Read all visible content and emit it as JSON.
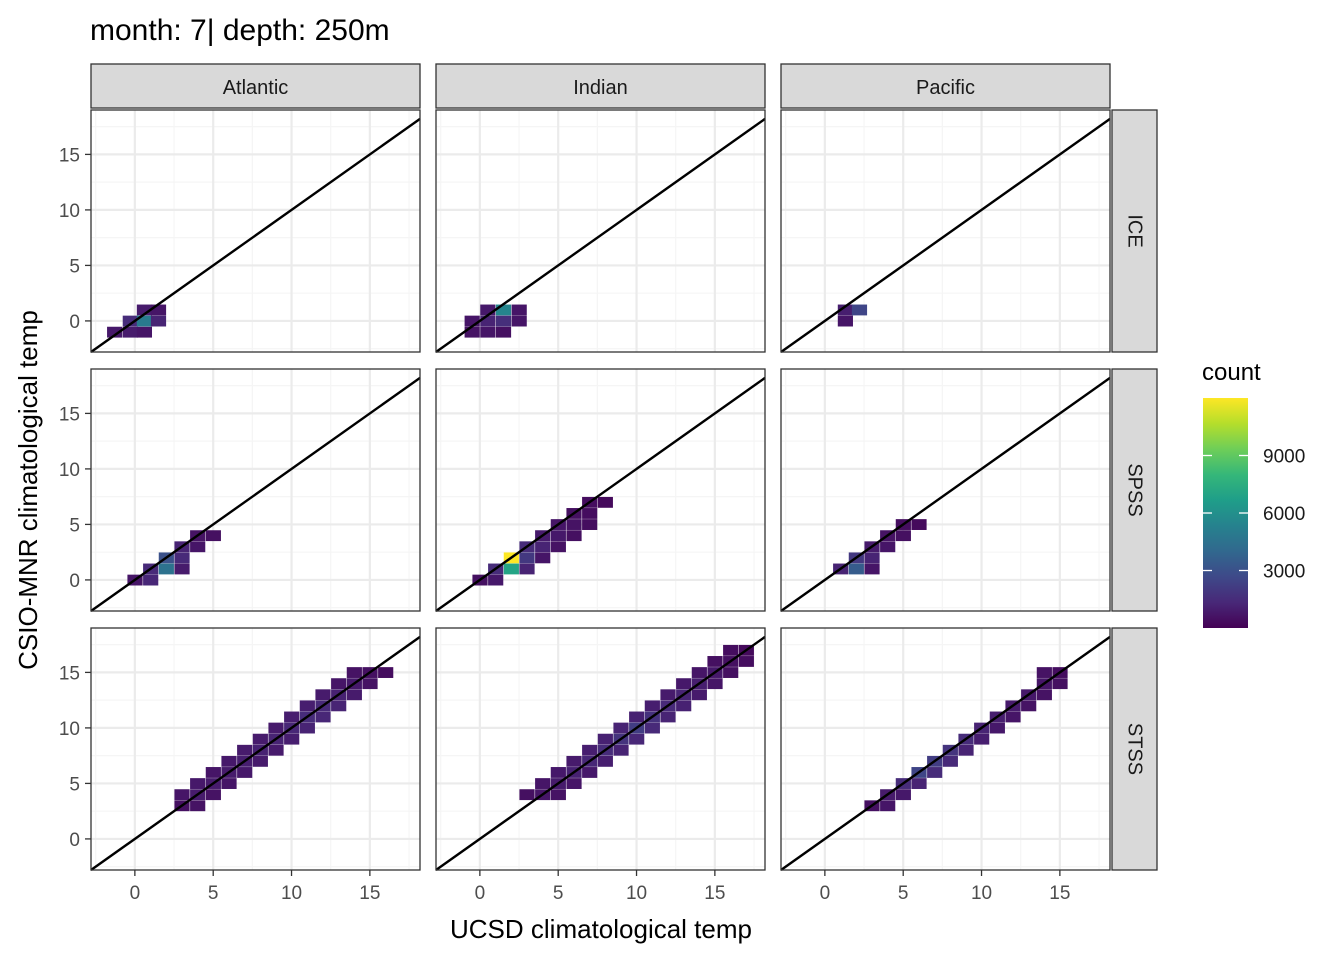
{
  "title": "month: 7| depth: 250m",
  "xlabel": "UCSD climatological temp",
  "ylabel": "CSIO-MNR climatological temp",
  "legend": {
    "title": "count",
    "ticks": [
      "3000",
      "6000",
      "9000"
    ],
    "tick_values": [
      3000,
      6000,
      9000
    ],
    "range": [
      1,
      12000
    ],
    "placement": "right",
    "colors": [
      "#440154",
      "#482878",
      "#3e4989",
      "#31688e",
      "#26828e",
      "#1f9e89",
      "#35b779",
      "#6ece58",
      "#b5de2b",
      "#fde725"
    ]
  },
  "colors": {
    "panel_border": "#333333",
    "strip_fill": "#d9d9d9",
    "grid_major": "#ebebeb",
    "grid_minor": "#f5f5f5",
    "identity_line": "#000000"
  },
  "chart_data": {
    "type": "heatmap",
    "geom": "2D histogram (bin2d) with identity line y = x",
    "facet_cols": [
      "Atlantic",
      "Indian",
      "Pacific"
    ],
    "facet_rows": [
      "ICE",
      "SPSS",
      "STSS"
    ],
    "x_ticks": [
      "0",
      "5",
      "10",
      "15"
    ],
    "y_ticks": [
      "0",
      "5",
      "10",
      "15"
    ],
    "xlim": [
      -2.8,
      18.2
    ],
    "ylim": [
      -2.8,
      19.0
    ],
    "bin_width": 0.95,
    "grid": true,
    "panels": [
      {
        "col": "Atlantic",
        "row": "ICE",
        "cells": [
          [
            -1.3,
            -1,
            800
          ],
          [
            -0.3,
            -1,
            900
          ],
          [
            0.6,
            -1,
            700
          ],
          [
            -0.3,
            0,
            1500
          ],
          [
            0.6,
            0,
            5000
          ],
          [
            1.5,
            0,
            1200
          ],
          [
            0.6,
            1,
            900
          ],
          [
            1.5,
            1,
            700
          ]
        ]
      },
      {
        "col": "Indian",
        "row": "ICE",
        "cells": [
          [
            -0.5,
            -1,
            600
          ],
          [
            0.5,
            -1,
            700
          ],
          [
            1.5,
            -1,
            500
          ],
          [
            -0.5,
            0,
            700
          ],
          [
            0.5,
            0,
            1200
          ],
          [
            1.5,
            0,
            1600
          ],
          [
            2.5,
            0,
            700
          ],
          [
            0.5,
            1,
            800
          ],
          [
            1.5,
            1,
            5500
          ],
          [
            2.5,
            1,
            700
          ]
        ]
      },
      {
        "col": "Pacific",
        "row": "ICE",
        "cells": [
          [
            1.3,
            1,
            1000
          ],
          [
            2.2,
            1,
            2500
          ],
          [
            1.3,
            0,
            700
          ]
        ]
      },
      {
        "col": "Atlantic",
        "row": "SPSS",
        "cells": [
          [
            0,
            0,
            700
          ],
          [
            1,
            0,
            1300
          ],
          [
            1,
            1,
            1400
          ],
          [
            2,
            1,
            4500
          ],
          [
            3,
            1,
            900
          ],
          [
            2,
            2,
            3000
          ],
          [
            3,
            2,
            1400
          ],
          [
            3,
            3,
            1200
          ],
          [
            4,
            3,
            700
          ],
          [
            4,
            4,
            600
          ],
          [
            5,
            4,
            500
          ]
        ]
      },
      {
        "col": "Indian",
        "row": "SPSS",
        "cells": [
          [
            0,
            0,
            500
          ],
          [
            1,
            0,
            800
          ],
          [
            1,
            1,
            1500
          ],
          [
            2,
            1,
            7000
          ],
          [
            3,
            1,
            1200
          ],
          [
            2,
            2,
            12000
          ],
          [
            3,
            2,
            2000
          ],
          [
            4,
            2,
            700
          ],
          [
            3,
            3,
            1500
          ],
          [
            4,
            3,
            1200
          ],
          [
            5,
            3,
            600
          ],
          [
            4,
            4,
            900
          ],
          [
            5,
            4,
            800
          ],
          [
            6,
            4,
            500
          ],
          [
            5,
            5,
            700
          ],
          [
            6,
            5,
            600
          ],
          [
            7,
            5,
            400
          ],
          [
            6,
            6,
            500
          ],
          [
            7,
            6,
            400
          ],
          [
            7,
            7,
            400
          ],
          [
            8,
            7,
            300
          ]
        ]
      },
      {
        "col": "Pacific",
        "row": "SPSS",
        "cells": [
          [
            1,
            1,
            1200
          ],
          [
            2,
            1,
            3500
          ],
          [
            3,
            1,
            700
          ],
          [
            2,
            2,
            2000
          ],
          [
            3,
            2,
            1200
          ],
          [
            3,
            3,
            900
          ],
          [
            4,
            3,
            700
          ],
          [
            4,
            4,
            600
          ],
          [
            5,
            4,
            500
          ],
          [
            5,
            5,
            400
          ],
          [
            6,
            5,
            300
          ]
        ]
      },
      {
        "col": "Atlantic",
        "row": "STSS",
        "cells": [
          [
            3,
            3,
            500
          ],
          [
            4,
            3,
            600
          ],
          [
            3,
            4,
            700
          ],
          [
            4,
            4,
            900
          ],
          [
            5,
            4,
            600
          ],
          [
            4,
            5,
            800
          ],
          [
            5,
            5,
            900
          ],
          [
            6,
            5,
            700
          ],
          [
            5,
            6,
            700
          ],
          [
            6,
            6,
            900
          ],
          [
            7,
            6,
            800
          ],
          [
            6,
            7,
            800
          ],
          [
            7,
            7,
            1000
          ],
          [
            8,
            7,
            900
          ],
          [
            7,
            8,
            900
          ],
          [
            8,
            8,
            1100
          ],
          [
            9,
            8,
            900
          ],
          [
            8,
            9,
            900
          ],
          [
            9,
            9,
            1200
          ],
          [
            10,
            9,
            1000
          ],
          [
            9,
            10,
            900
          ],
          [
            10,
            10,
            1300
          ],
          [
            11,
            10,
            1200
          ],
          [
            10,
            11,
            1000
          ],
          [
            11,
            11,
            1500
          ],
          [
            12,
            11,
            1300
          ],
          [
            11,
            12,
            1000
          ],
          [
            12,
            12,
            1400
          ],
          [
            13,
            12,
            1200
          ],
          [
            12,
            13,
            900
          ],
          [
            13,
            13,
            1100
          ],
          [
            14,
            13,
            900
          ],
          [
            13,
            14,
            700
          ],
          [
            14,
            14,
            800
          ],
          [
            15,
            14,
            600
          ],
          [
            14,
            15,
            600
          ],
          [
            15,
            15,
            500
          ],
          [
            16,
            15,
            400
          ]
        ]
      },
      {
        "col": "Indian",
        "row": "STSS",
        "cells": [
          [
            3,
            4,
            500
          ],
          [
            4,
            4,
            700
          ],
          [
            5,
            4,
            600
          ],
          [
            4,
            5,
            700
          ],
          [
            5,
            5,
            900
          ],
          [
            6,
            5,
            700
          ],
          [
            5,
            6,
            800
          ],
          [
            6,
            6,
            1100
          ],
          [
            7,
            6,
            800
          ],
          [
            6,
            7,
            900
          ],
          [
            7,
            7,
            1300
          ],
          [
            8,
            7,
            1000
          ],
          [
            7,
            8,
            1000
          ],
          [
            8,
            8,
            1500
          ],
          [
            9,
            8,
            1200
          ],
          [
            8,
            9,
            1100
          ],
          [
            9,
            9,
            1800
          ],
          [
            10,
            9,
            1300
          ],
          [
            9,
            10,
            1200
          ],
          [
            10,
            10,
            2200
          ],
          [
            11,
            10,
            1400
          ],
          [
            10,
            11,
            1100
          ],
          [
            11,
            11,
            1700
          ],
          [
            12,
            11,
            1200
          ],
          [
            11,
            12,
            1000
          ],
          [
            12,
            12,
            1400
          ],
          [
            13,
            12,
            1100
          ],
          [
            12,
            13,
            900
          ],
          [
            13,
            13,
            1200
          ],
          [
            14,
            13,
            900
          ],
          [
            13,
            14,
            800
          ],
          [
            14,
            14,
            1000
          ],
          [
            15,
            14,
            700
          ],
          [
            14,
            15,
            700
          ],
          [
            15,
            15,
            800
          ],
          [
            16,
            15,
            500
          ],
          [
            15,
            16,
            500
          ],
          [
            16,
            16,
            500
          ],
          [
            17,
            16,
            400
          ],
          [
            16,
            17,
            400
          ],
          [
            17,
            17,
            300
          ]
        ]
      },
      {
        "col": "Pacific",
        "row": "STSS",
        "cells": [
          [
            3,
            3,
            500
          ],
          [
            4,
            3,
            700
          ],
          [
            4,
            4,
            900
          ],
          [
            5,
            4,
            800
          ],
          [
            5,
            5,
            1500
          ],
          [
            6,
            5,
            1200
          ],
          [
            6,
            6,
            2500
          ],
          [
            7,
            6,
            1500
          ],
          [
            7,
            7,
            2200
          ],
          [
            8,
            7,
            1400
          ],
          [
            8,
            8,
            1800
          ],
          [
            9,
            8,
            1200
          ],
          [
            9,
            9,
            1500
          ],
          [
            10,
            9,
            1000
          ],
          [
            10,
            10,
            1200
          ],
          [
            11,
            10,
            800
          ],
          [
            11,
            11,
            1000
          ],
          [
            12,
            11,
            700
          ],
          [
            12,
            12,
            900
          ],
          [
            13,
            12,
            600
          ],
          [
            13,
            13,
            800
          ],
          [
            14,
            13,
            600
          ],
          [
            14,
            14,
            700
          ],
          [
            15,
            14,
            500
          ],
          [
            14,
            15,
            600
          ],
          [
            15,
            15,
            400
          ]
        ]
      }
    ]
  }
}
